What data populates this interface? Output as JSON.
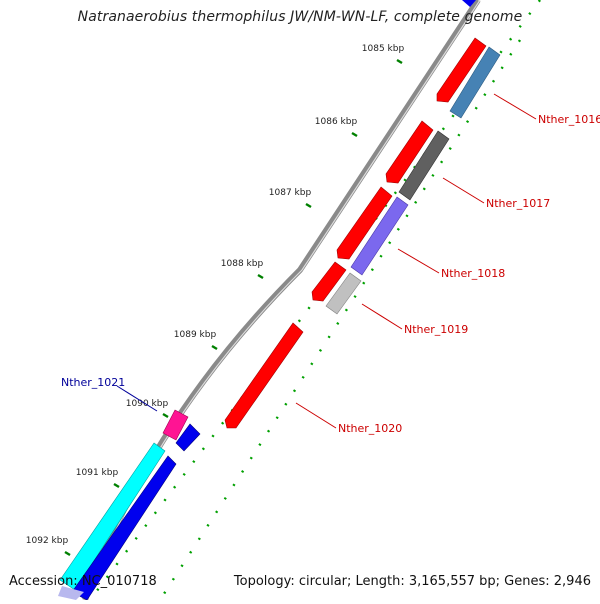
{
  "title": "Natranaerobius thermophilus JW/NM-WN-LF, complete genome",
  "footer": {
    "accession": "Accession: NC_010718",
    "summary": "Topology: circular; Length: 3,165,557 bp; Genes: 2,946"
  },
  "ticks": [
    {
      "label": "1085 kbp"
    },
    {
      "label": "1086 kbp"
    },
    {
      "label": "1087 kbp"
    },
    {
      "label": "1088 kbp"
    },
    {
      "label": "1089 kbp"
    },
    {
      "label": "1090 kbp"
    },
    {
      "label": "1091 kbp"
    },
    {
      "label": "1092 kbp"
    }
  ],
  "genes": [
    {
      "label": "Nther_1016",
      "color": "#cc0000"
    },
    {
      "label": "Nther_1017",
      "color": "#cc0000"
    },
    {
      "label": "Nther_1018",
      "color": "#cc0000"
    },
    {
      "label": "Nther_1019",
      "color": "#cc0000"
    },
    {
      "label": "Nther_1020",
      "color": "#cc0000"
    },
    {
      "label": "Nther_1021",
      "color": "#000099"
    }
  ],
  "colors": {
    "backbone": "#8a8a8a",
    "tick": "#008000",
    "cds_red": "#ff0000",
    "steel_blue": "#4682b4",
    "dark_gray": "#606060",
    "slate_blue": "#7b68ee",
    "light_gray": "#c0c0c0",
    "magenta": "#ff1493",
    "blue": "#0000ee",
    "cyan": "#00ffff"
  }
}
